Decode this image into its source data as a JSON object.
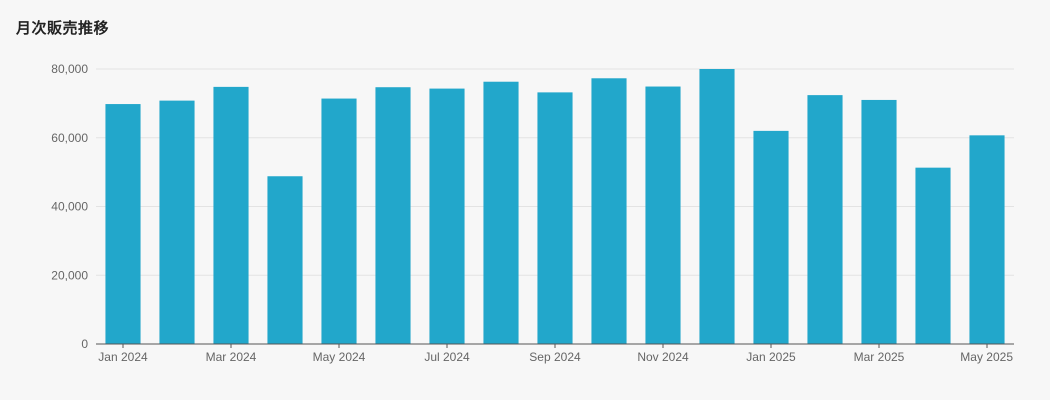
{
  "chart_data": {
    "type": "bar",
    "title": "月次販売推移",
    "categories": [
      "2024-01",
      "2024-02",
      "2024-03",
      "2024-04",
      "2024-05",
      "2024-06",
      "2024-07",
      "2024-08",
      "2024-09",
      "2024-10",
      "2024-11",
      "2024-12",
      "2025-01",
      "2025-02",
      "2025-03",
      "2025-04",
      "2025-05"
    ],
    "series": [
      {
        "values": [
          69800,
          70800,
          74800,
          48800,
          71400,
          74700,
          74300,
          76300,
          73200,
          77300,
          74900,
          80000,
          62000,
          72400,
          71000,
          51300,
          60700
        ]
      }
    ],
    "x_tick_labels": [
      {
        "category": "2024-01",
        "label": "Jan 2024"
      },
      {
        "category": "2024-03",
        "label": "Mar 2024"
      },
      {
        "category": "2024-05",
        "label": "May 2024"
      },
      {
        "category": "2024-07",
        "label": "Jul 2024"
      },
      {
        "category": "2024-09",
        "label": "Sep 2024"
      },
      {
        "category": "2024-11",
        "label": "Nov 2024"
      },
      {
        "category": "2025-01",
        "label": "Jan 2025"
      },
      {
        "category": "2025-03",
        "label": "Mar 2025"
      },
      {
        "category": "2025-05",
        "label": "May 2025"
      }
    ],
    "ylim": [
      0,
      80000
    ],
    "y_ticks": [
      0,
      20000,
      40000,
      60000,
      80000
    ],
    "y_tick_labels": [
      "0",
      "20,000",
      "40,000",
      "60,000",
      "80,000"
    ],
    "xlabel": "",
    "ylabel": "",
    "grid": true,
    "legend": "none",
    "bar_color": "#22a7cb",
    "grid_color": "#e3e3e3",
    "axis_color": "#555555"
  }
}
